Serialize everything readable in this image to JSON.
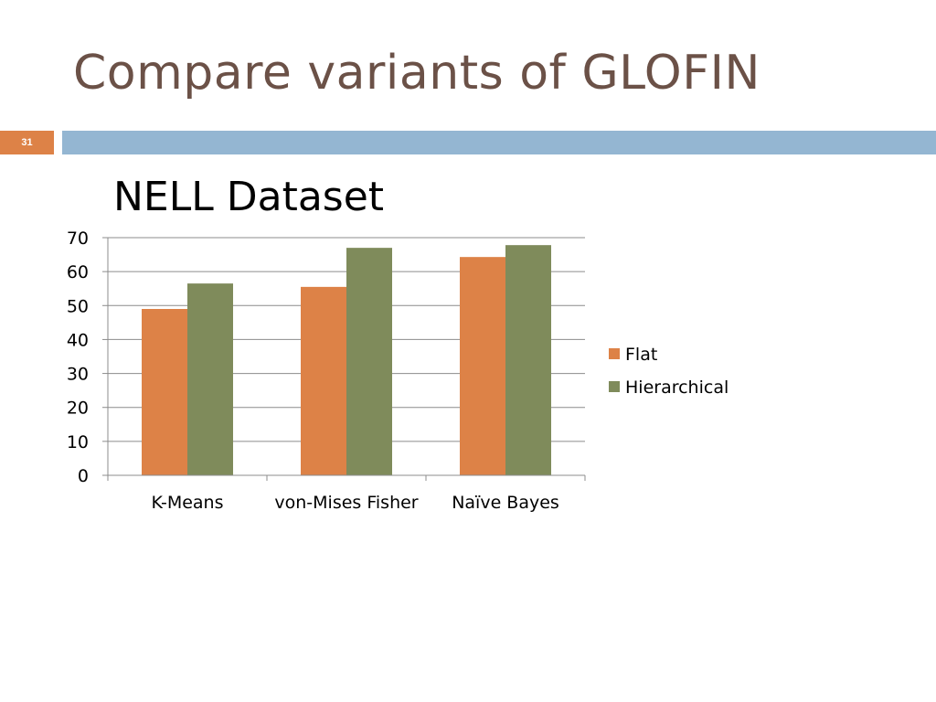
{
  "slide": {
    "title": "Compare variants of GLOFIN",
    "number": "31"
  },
  "colors": {
    "title": "#6b5147",
    "accent_orange": "#dd8247",
    "accent_blue": "#94b6d2",
    "chart_title": "#376092"
  },
  "chart_data": {
    "type": "bar",
    "title": "NELL Dataset",
    "categories": [
      "K-Means",
      "von-Mises Fisher",
      "Naïve Bayes"
    ],
    "series": [
      {
        "name": "Flat",
        "values": [
          49,
          55.5,
          64.3
        ],
        "color": "#dd8247"
      },
      {
        "name": "Hierarchical",
        "values": [
          56.5,
          67,
          67.8
        ],
        "color": "#7f8b5b"
      }
    ],
    "ylim": [
      0,
      70
    ],
    "yticks": [
      0,
      10,
      20,
      30,
      40,
      50,
      60,
      70
    ],
    "grid": true,
    "legend": "right",
    "xlabel": "",
    "ylabel": ""
  }
}
